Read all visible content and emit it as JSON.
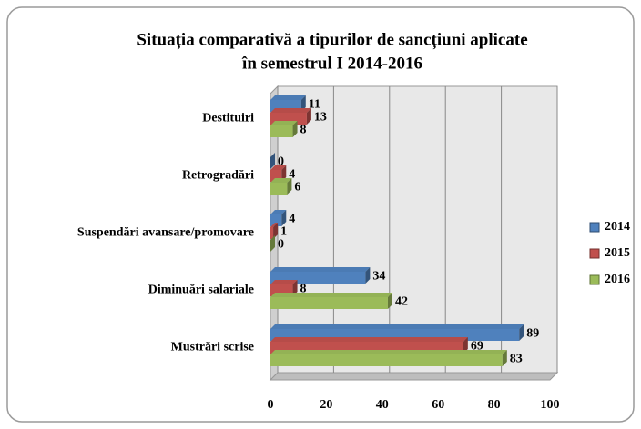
{
  "chart_data": {
    "type": "bar",
    "orientation": "horizontal",
    "title": [
      "Situația comparativă a tipurilor de sancțiuni aplicate",
      "în semestrul I 2014-2016"
    ],
    "categories": [
      "Destituiri",
      "Retrogradări",
      "Suspendări avansare/promovare",
      "Diminuări salariale",
      "Mustrări scrise"
    ],
    "series": [
      {
        "name": "2014",
        "color": "#4f81bd",
        "values": [
          11,
          0,
          4,
          34,
          89
        ]
      },
      {
        "name": "2015",
        "color": "#c0504d",
        "values": [
          13,
          4,
          1,
          8,
          69
        ]
      },
      {
        "name": "2016",
        "color": "#9bbb59",
        "values": [
          8,
          6,
          0,
          42,
          83
        ]
      }
    ],
    "xlim": [
      0,
      100
    ],
    "xticks": [
      0,
      20,
      40,
      60,
      80,
      100
    ],
    "grid": true,
    "legend": "right"
  }
}
